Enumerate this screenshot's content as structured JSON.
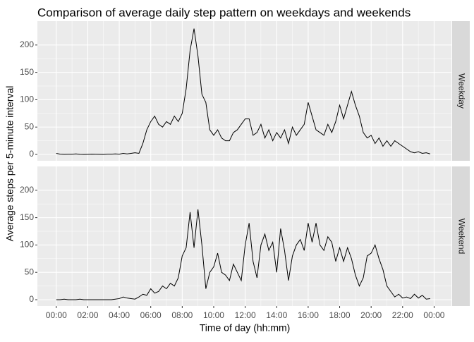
{
  "chart_data": {
    "type": "line",
    "title": "Comparison of average daily step pattern on weekdays and weekends",
    "x_label": "Time of day (hh:mm)",
    "y_label": "Average steps per 5-minute interval",
    "facet": true,
    "grid": true,
    "x": [
      0,
      0.25,
      0.5,
      0.75,
      1,
      1.25,
      1.5,
      1.75,
      2,
      2.25,
      2.5,
      2.75,
      3,
      3.25,
      3.5,
      3.75,
      4,
      4.25,
      4.5,
      4.75,
      5,
      5.25,
      5.5,
      5.75,
      6,
      6.25,
      6.5,
      6.75,
      7,
      7.25,
      7.5,
      7.75,
      8,
      8.25,
      8.5,
      8.75,
      9,
      9.25,
      9.5,
      9.75,
      10,
      10.25,
      10.5,
      10.75,
      11,
      11.25,
      11.5,
      11.75,
      12,
      12.25,
      12.5,
      12.75,
      13,
      13.25,
      13.5,
      13.75,
      14,
      14.25,
      14.5,
      14.75,
      15,
      15.25,
      15.5,
      15.75,
      16,
      16.25,
      16.5,
      16.75,
      17,
      17.25,
      17.5,
      17.75,
      18,
      18.25,
      18.5,
      18.75,
      19,
      19.25,
      19.5,
      19.75,
      20,
      20.25,
      20.5,
      20.75,
      21,
      21.25,
      21.5,
      21.75,
      22,
      22.25,
      22.5,
      22.75,
      23,
      23.25,
      23.5,
      23.75
    ],
    "series": [
      {
        "name": "Weekday",
        "color": "#000000",
        "values": [
          2,
          0.5,
          0.2,
          0.3,
          0.3,
          1,
          0.2,
          0,
          0.2,
          0.5,
          0.3,
          0.2,
          0,
          0.5,
          0.5,
          1,
          0.5,
          2,
          1,
          2,
          3,
          2,
          20,
          45,
          60,
          70,
          55,
          50,
          60,
          55,
          70,
          60,
          75,
          120,
          190,
          230,
          180,
          110,
          95,
          45,
          35,
          45,
          30,
          25,
          25,
          40,
          45,
          55,
          65,
          65,
          35,
          40,
          55,
          30,
          45,
          25,
          40,
          30,
          45,
          20,
          50,
          35,
          45,
          55,
          95,
          70,
          45,
          40,
          35,
          55,
          40,
          60,
          90,
          65,
          90,
          115,
          90,
          70,
          40,
          30,
          35,
          20,
          30,
          15,
          25,
          15,
          25,
          20,
          15,
          10,
          5,
          3,
          5,
          2,
          3,
          1
        ]
      },
      {
        "name": "Weekend",
        "color": "#000000",
        "values": [
          0,
          0,
          1,
          0,
          0,
          0,
          1,
          0,
          0,
          0,
          0,
          0,
          0,
          0,
          0,
          1,
          2,
          5,
          3,
          2,
          1,
          5,
          10,
          8,
          20,
          12,
          15,
          25,
          20,
          30,
          25,
          40,
          80,
          95,
          160,
          95,
          165,
          100,
          20,
          50,
          60,
          85,
          50,
          45,
          35,
          65,
          50,
          35,
          100,
          140,
          70,
          40,
          100,
          120,
          90,
          105,
          50,
          130,
          90,
          35,
          80,
          100,
          110,
          90,
          140,
          105,
          140,
          100,
          90,
          115,
          105,
          70,
          95,
          70,
          95,
          75,
          45,
          25,
          40,
          80,
          85,
          100,
          75,
          55,
          25,
          15,
          5,
          10,
          3,
          5,
          2,
          10,
          3,
          8,
          1,
          2
        ]
      }
    ],
    "xlim": [
      -1.2,
      25.1
    ],
    "xticks": [
      {
        "value": 0,
        "label": "00:00"
      },
      {
        "value": 2,
        "label": "02:00"
      },
      {
        "value": 4,
        "label": "04:00"
      },
      {
        "value": 6,
        "label": "06:00"
      },
      {
        "value": 8,
        "label": "08:00"
      },
      {
        "value": 10,
        "label": "10:00"
      },
      {
        "value": 12,
        "label": "12:00"
      },
      {
        "value": 14,
        "label": "14:00"
      },
      {
        "value": 16,
        "label": "16:00"
      },
      {
        "value": 18,
        "label": "18:00"
      },
      {
        "value": 20,
        "label": "20:00"
      },
      {
        "value": 22,
        "label": "22:00"
      },
      {
        "value": 24,
        "label": "00:00"
      }
    ],
    "ylim": [
      -11.6,
      243.6
    ],
    "yticks": [
      0,
      50,
      100,
      150,
      200
    ]
  }
}
